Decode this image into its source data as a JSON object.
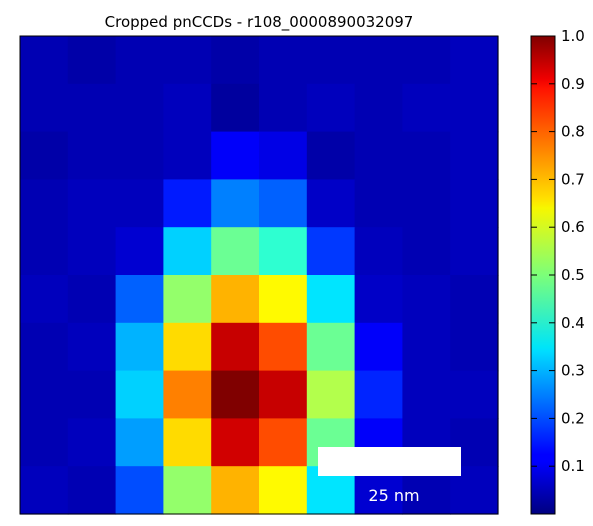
{
  "chart_data": {
    "type": "heatmap",
    "title": "Cropped pnCCDs - r108_0000890032097",
    "rows": 10,
    "cols": 10,
    "values": [
      [
        0.05,
        0.04,
        0.05,
        0.05,
        0.04,
        0.05,
        0.05,
        0.05,
        0.05,
        0.06
      ],
      [
        0.05,
        0.05,
        0.05,
        0.06,
        0.03,
        0.05,
        0.06,
        0.05,
        0.06,
        0.06
      ],
      [
        0.04,
        0.05,
        0.05,
        0.06,
        0.12,
        0.1,
        0.04,
        0.05,
        0.05,
        0.06
      ],
      [
        0.05,
        0.06,
        0.06,
        0.15,
        0.25,
        0.22,
        0.07,
        0.05,
        0.05,
        0.06
      ],
      [
        0.05,
        0.06,
        0.08,
        0.33,
        0.48,
        0.42,
        0.18,
        0.06,
        0.05,
        0.06
      ],
      [
        0.06,
        0.05,
        0.22,
        0.52,
        0.7,
        0.63,
        0.35,
        0.07,
        0.06,
        0.05
      ],
      [
        0.05,
        0.06,
        0.3,
        0.66,
        0.93,
        0.8,
        0.48,
        0.12,
        0.06,
        0.05
      ],
      [
        0.05,
        0.05,
        0.33,
        0.75,
        1.0,
        0.93,
        0.55,
        0.16,
        0.06,
        0.06
      ],
      [
        0.05,
        0.06,
        0.28,
        0.66,
        0.92,
        0.8,
        0.48,
        0.12,
        0.06,
        0.05
      ],
      [
        0.06,
        0.05,
        0.2,
        0.52,
        0.7,
        0.63,
        0.35,
        0.08,
        0.05,
        0.06
      ]
    ],
    "colorbar": {
      "min": 0,
      "max": 1.0,
      "ticks": [
        "0.1",
        "0.2",
        "0.3",
        "0.4",
        "0.5",
        "0.6",
        "0.7",
        "0.8",
        "0.9",
        "1.0"
      ],
      "colormap": "jet"
    },
    "scale_bar_label": "25 nm",
    "grid": false
  }
}
